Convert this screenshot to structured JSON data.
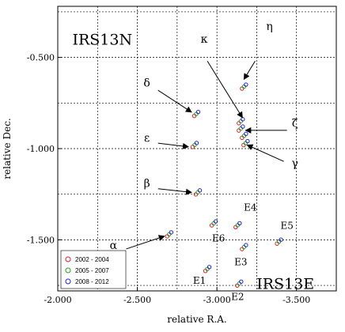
{
  "chart_data": {
    "type": "scatter",
    "title": "",
    "xlabel": "relative R.A.",
    "ylabel": "relative Dec.",
    "xlim": [
      -2.0,
      -3.75
    ],
    "ylim": [
      -1.78,
      -0.22
    ],
    "x_inverted": true,
    "grid": true,
    "x_ticks": [
      "-2.000",
      "-2.500",
      "-3.000",
      "-3.500"
    ],
    "x_tick_values": [
      -2.0,
      -2.5,
      -3.0,
      -3.5
    ],
    "y_ticks": [
      "-0.500",
      "-1.000",
      "-1.500"
    ],
    "y_tick_values": [
      -0.5,
      -1.0,
      -1.5
    ],
    "region_labels": [
      {
        "text": "IRS13N",
        "x": -2.28,
        "y": -0.43
      },
      {
        "text": "IRS13E",
        "x": -3.43,
        "y": -1.77
      }
    ],
    "series": [
      {
        "name": "2002 - 2004",
        "color": "#e02020",
        "marker": "circle"
      },
      {
        "name": "2005 - 2007",
        "color": "#20a020",
        "marker": "circle"
      },
      {
        "name": "2008 - 2012",
        "color": "#2020e0",
        "marker": "circle"
      }
    ],
    "sources": [
      {
        "x": -3.17,
        "y": -0.66
      },
      {
        "x": -3.15,
        "y": -0.85
      },
      {
        "x": -3.15,
        "y": -0.89
      },
      {
        "x": -3.17,
        "y": -0.93
      },
      {
        "x": -3.18,
        "y": -0.97
      },
      {
        "x": -2.87,
        "y": -0.81
      },
      {
        "x": -2.86,
        "y": -0.98
      },
      {
        "x": -2.88,
        "y": -1.24
      },
      {
        "x": -2.7,
        "y": -1.47
      },
      {
        "x": -2.98,
        "y": -1.41
      },
      {
        "x": -3.13,
        "y": -1.42
      },
      {
        "x": -3.17,
        "y": -1.54
      },
      {
        "x": -3.39,
        "y": -1.51
      },
      {
        "x": -2.94,
        "y": -1.66
      },
      {
        "x": -3.14,
        "y": -1.74
      }
    ],
    "greek_labels": [
      {
        "text": "η",
        "tx": -3.33,
        "ty": -0.35,
        "ax": -3.24,
        "ay": -0.52,
        "hx": -3.17,
        "hy": -0.62
      },
      {
        "text": "κ",
        "tx": -2.92,
        "ty": -0.42,
        "ax": -2.94,
        "ay": -0.52,
        "hx": -3.16,
        "hy": -0.83
      },
      {
        "text": "δ",
        "tx": -2.56,
        "ty": -0.66,
        "ax": -2.63,
        "ay": -0.68,
        "hx": -2.84,
        "hy": -0.8
      },
      {
        "text": "ζ",
        "tx": -3.49,
        "ty": -0.88,
        "ax": -3.44,
        "ay": -0.9,
        "hx": -3.18,
        "hy": -0.9
      },
      {
        "text": "ε",
        "tx": -2.56,
        "ty": -0.96,
        "ax": -2.63,
        "ay": -0.97,
        "hx": -2.82,
        "hy": -0.99
      },
      {
        "text": "γ",
        "tx": -3.49,
        "ty": -1.1,
        "ax": -3.42,
        "ay": -1.07,
        "hx": -3.19,
        "hy": -0.98
      },
      {
        "text": "β",
        "tx": -2.56,
        "ty": -1.21,
        "ax": -2.63,
        "ay": -1.22,
        "hx": -2.84,
        "hy": -1.24
      },
      {
        "text": "α",
        "tx": -2.35,
        "ty": -1.55,
        "ax": -2.43,
        "ay": -1.55,
        "hx": -2.67,
        "hy": -1.48
      }
    ],
    "source_labels": [
      {
        "text": "E4",
        "x": -3.21,
        "y": -1.34
      },
      {
        "text": "E5",
        "x": -3.44,
        "y": -1.44
      },
      {
        "text": "E6",
        "x": -3.01,
        "y": -1.51
      },
      {
        "text": "E3",
        "x": -3.15,
        "y": -1.64
      },
      {
        "text": "E1",
        "x": -2.89,
        "y": -1.74
      },
      {
        "text": "E2",
        "x": -3.13,
        "y": -1.83
      }
    ]
  }
}
